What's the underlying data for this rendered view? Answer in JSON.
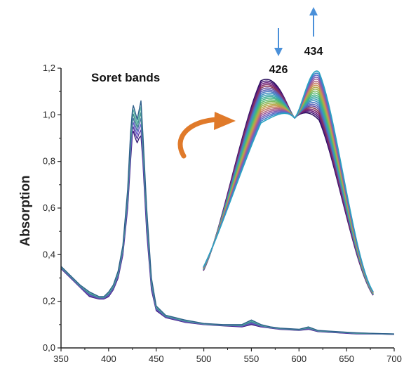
{
  "chart_data": [
    {
      "type": "line",
      "title": "",
      "xlabel": "",
      "ylabel": "Absorption",
      "xlim": [
        350,
        700
      ],
      "ylim": [
        0.0,
        1.2
      ],
      "x_ticks": [
        "350",
        "400",
        "450",
        "500",
        "550",
        "600",
        "650",
        "700"
      ],
      "y_ticks": [
        "0,0",
        "0,2",
        "0,4",
        "0,6",
        "0,8",
        "1,0",
        "1,2"
      ],
      "grid": false,
      "annotations": [
        "Soret bands"
      ],
      "series_band": {
        "count": 7,
        "colors": [
          "#3a1e78",
          "#5b3fa0",
          "#6a5acd",
          "#4a6fa5",
          "#3f8f8a",
          "#5fb8a8",
          "#2e5f8a"
        ],
        "x": [
          350,
          360,
          370,
          380,
          390,
          395,
          400,
          405,
          410,
          415,
          420,
          423,
          425,
          426,
          428,
          430,
          432,
          434,
          436,
          440,
          445,
          450,
          460,
          480,
          500,
          520,
          540,
          550,
          560,
          570,
          580,
          600,
          610,
          620,
          640,
          660,
          680,
          700
        ],
        "y_min": [
          0.34,
          0.3,
          0.26,
          0.22,
          0.21,
          0.21,
          0.22,
          0.25,
          0.3,
          0.4,
          0.6,
          0.8,
          0.92,
          0.93,
          0.9,
          0.88,
          0.9,
          0.91,
          0.8,
          0.5,
          0.25,
          0.16,
          0.13,
          0.11,
          0.1,
          0.095,
          0.09,
          0.1,
          0.09,
          0.085,
          0.08,
          0.075,
          0.08,
          0.07,
          0.065,
          0.06,
          0.06,
          0.058
        ],
        "y_max": [
          0.35,
          0.31,
          0.27,
          0.24,
          0.22,
          0.22,
          0.24,
          0.27,
          0.33,
          0.44,
          0.68,
          0.92,
          1.02,
          1.04,
          1.01,
          0.98,
          1.02,
          1.06,
          0.92,
          0.6,
          0.3,
          0.18,
          0.14,
          0.12,
          0.105,
          0.1,
          0.1,
          0.12,
          0.1,
          0.09,
          0.085,
          0.08,
          0.09,
          0.075,
          0.07,
          0.065,
          0.062,
          0.06
        ]
      }
    },
    {
      "type": "line",
      "title": "",
      "xlabel": "",
      "ylabel": "",
      "peak_labels": [
        "426",
        "434"
      ],
      "trend_arrows": [
        "down",
        "up"
      ],
      "curve_count": 24,
      "colors": [
        "#2b0f5e",
        "#4b1a78",
        "#6b1f7a",
        "#7d2a6a",
        "#8a3b58",
        "#6a4fa0",
        "#5a63b8",
        "#4c78c2",
        "#3f8fc0",
        "#3aa0b2",
        "#3cab9c",
        "#46b386",
        "#5bb870",
        "#7bb85e",
        "#9cb24f",
        "#b6a84a",
        "#c79454",
        "#c57d6a",
        "#b36a84",
        "#9e5d9c",
        "#7f5fb4",
        "#5f6ac4",
        "#3f82c8",
        "#2ca3c2"
      ]
    }
  ]
}
